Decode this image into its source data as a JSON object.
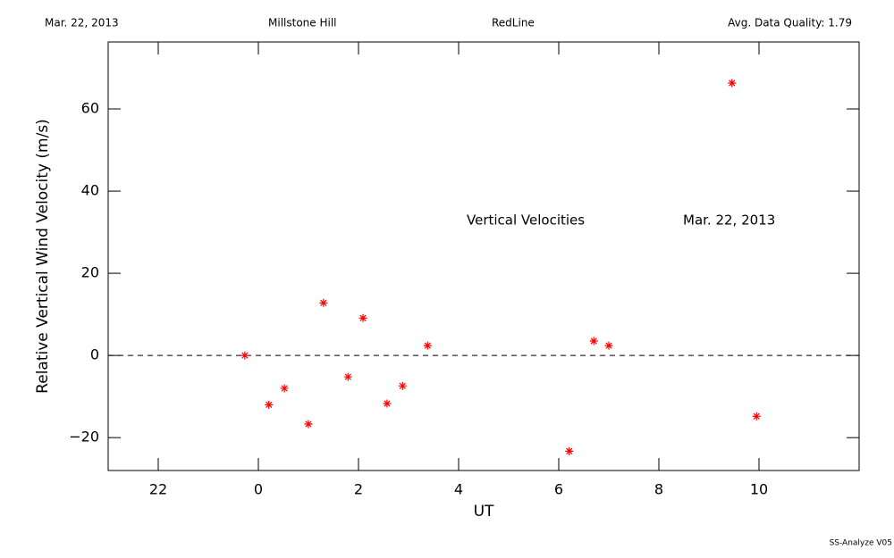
{
  "chart_data": {
    "type": "scatter",
    "header": {
      "date": "Mar. 22, 2013",
      "site": "Millstone Hill",
      "channel": "RedLine",
      "quality": "Avg. Data Quality: 1.79"
    },
    "annotations": [
      "Vertical Velocities",
      "Mar. 22, 2013"
    ],
    "footer": "SS-Analyze V05",
    "x_label": "UT",
    "y_label": "Relative Vertical Wind Velocity (m/s)",
    "color": "#ff0000",
    "reference_line": 0,
    "x": [
      -0.27,
      0.21,
      0.52,
      1.0,
      1.3,
      1.79,
      2.09,
      2.57,
      2.88,
      3.38,
      6.21,
      6.7,
      7.0,
      9.46,
      9.95
    ],
    "values": [
      0,
      -12.0,
      -8.0,
      -16.7,
      12.8,
      -5.2,
      9.1,
      -11.7,
      -7.4,
      2.4,
      -23.3,
      3.5,
      2.4,
      66.3,
      -14.8
    ],
    "xlim": [
      -3,
      12
    ],
    "ylim": [
      -28,
      76.3
    ],
    "xticks": [
      {
        "value": -2,
        "label": "22"
      },
      0,
      2,
      4,
      6,
      8,
      10
    ],
    "yticks": [
      {
        "value": -20,
        "label": "−20"
      },
      0,
      20,
      40,
      60
    ]
  }
}
